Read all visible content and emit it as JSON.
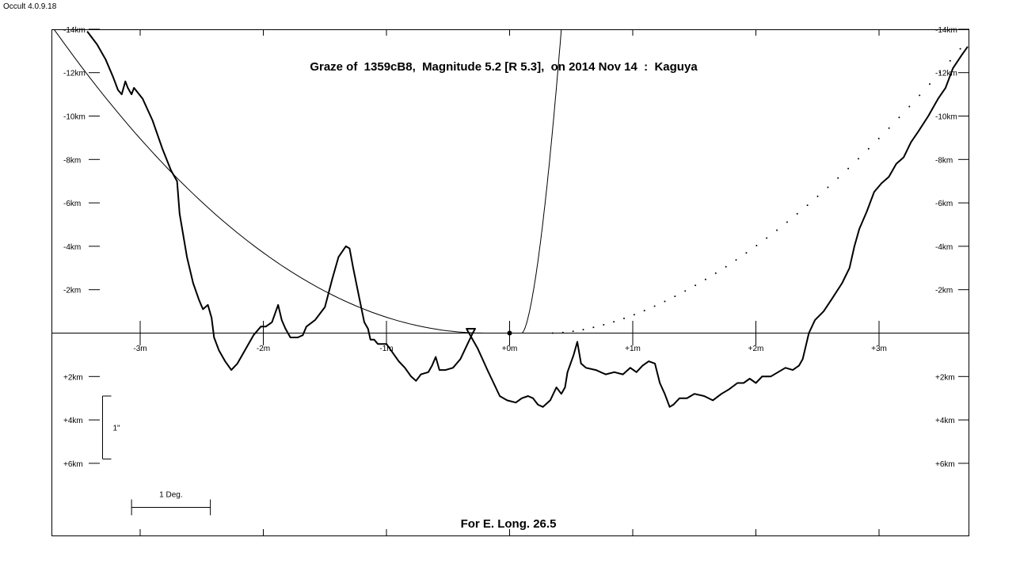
{
  "app": {
    "version_label": "Occult 4.0.9.18"
  },
  "chart_data": {
    "type": "line",
    "title": "Graze of  1359cB8,  Magnitude 5.2 [R 5.3],  on 2014 Nov 14  :  Kaguya",
    "footer": "For E. Long. 26.5",
    "x_unit": "minutes",
    "y_unit": "km",
    "xlim": [
      -3.7,
      3.78
    ],
    "ylim": [
      -14,
      9.3
    ],
    "x_ticks": [
      {
        "value": -3,
        "label": "-3m"
      },
      {
        "value": -2,
        "label": "-2m"
      },
      {
        "value": -1,
        "label": "-1m"
      },
      {
        "value": 0,
        "label": "+0m"
      },
      {
        "value": 1,
        "label": "+1m"
      },
      {
        "value": 2,
        "label": "+2m"
      },
      {
        "value": 3,
        "label": "+3m"
      }
    ],
    "y_ticks": [
      {
        "value": -14,
        "label": "-14km"
      },
      {
        "value": -12,
        "label": "-12km"
      },
      {
        "value": -10,
        "label": "-10km"
      },
      {
        "value": -8,
        "label": "-8km"
      },
      {
        "value": -6,
        "label": "-6km"
      },
      {
        "value": -4,
        "label": "-4km"
      },
      {
        "value": -2,
        "label": "-2km"
      },
      {
        "value": 2,
        "label": "+2km"
      },
      {
        "value": 4,
        "label": "+4km"
      },
      {
        "value": 6,
        "label": "+6km"
      }
    ],
    "scale_bars": {
      "arcsec_label": "1\"",
      "arcsec_km": [
        2.9,
        5.8
      ],
      "degree_label": "1 Deg.",
      "degree_minutes": [
        -3.07,
        -2.43
      ]
    },
    "limb_profile": [
      [
        -3.43,
        -13.9
      ],
      [
        -3.35,
        -13.3
      ],
      [
        -3.28,
        -12.6
      ],
      [
        -3.22,
        -11.8
      ],
      [
        -3.18,
        -11.2
      ],
      [
        -3.15,
        -11.0
      ],
      [
        -3.12,
        -11.6
      ],
      [
        -3.1,
        -11.3
      ],
      [
        -3.07,
        -11.0
      ],
      [
        -3.05,
        -11.3
      ],
      [
        -2.98,
        -10.8
      ],
      [
        -2.9,
        -9.8
      ],
      [
        -2.82,
        -8.5
      ],
      [
        -2.75,
        -7.5
      ],
      [
        -2.7,
        -7.0
      ],
      [
        -2.68,
        -5.5
      ],
      [
        -2.62,
        -3.5
      ],
      [
        -2.57,
        -2.3
      ],
      [
        -2.52,
        -1.5
      ],
      [
        -2.49,
        -1.1
      ],
      [
        -2.45,
        -1.3
      ],
      [
        -2.42,
        -0.7
      ],
      [
        -2.4,
        0.2
      ],
      [
        -2.36,
        0.8
      ],
      [
        -2.31,
        1.3
      ],
      [
        -2.26,
        1.7
      ],
      [
        -2.21,
        1.4
      ],
      [
        -2.15,
        0.8
      ],
      [
        -2.08,
        0.1
      ],
      [
        -2.02,
        -0.3
      ],
      [
        -1.98,
        -0.3
      ],
      [
        -1.93,
        -0.5
      ],
      [
        -1.88,
        -1.3
      ],
      [
        -1.85,
        -0.6
      ],
      [
        -1.82,
        -0.2
      ],
      [
        -1.78,
        0.2
      ],
      [
        -1.72,
        0.2
      ],
      [
        -1.68,
        0.1
      ],
      [
        -1.65,
        -0.3
      ],
      [
        -1.58,
        -0.6
      ],
      [
        -1.5,
        -1.2
      ],
      [
        -1.44,
        -2.5
      ],
      [
        -1.39,
        -3.5
      ],
      [
        -1.33,
        -4.0
      ],
      [
        -1.3,
        -3.9
      ],
      [
        -1.27,
        -3.0
      ],
      [
        -1.22,
        -1.6
      ],
      [
        -1.18,
        -0.5
      ],
      [
        -1.15,
        -0.2
      ],
      [
        -1.13,
        0.3
      ],
      [
        -1.1,
        0.3
      ],
      [
        -1.07,
        0.5
      ],
      [
        -1.0,
        0.5
      ],
      [
        -0.95,
        0.9
      ],
      [
        -0.9,
        1.3
      ],
      [
        -0.85,
        1.6
      ],
      [
        -0.8,
        2.0
      ],
      [
        -0.76,
        2.2
      ],
      [
        -0.72,
        1.9
      ],
      [
        -0.66,
        1.8
      ],
      [
        -0.63,
        1.5
      ],
      [
        -0.6,
        1.1
      ],
      [
        -0.57,
        1.7
      ],
      [
        -0.52,
        1.7
      ],
      [
        -0.46,
        1.6
      ],
      [
        -0.4,
        1.2
      ],
      [
        -0.35,
        0.6
      ],
      [
        -0.3,
        0.0
      ],
      [
        -0.28,
        -0.2
      ],
      [
        -0.35,
        -0.2
      ],
      [
        -0.33,
        0.0
      ],
      [
        -0.3,
        0.3
      ],
      [
        -0.26,
        0.7
      ],
      [
        -0.22,
        1.2
      ],
      [
        -0.18,
        1.7
      ],
      [
        -0.13,
        2.3
      ],
      [
        -0.08,
        2.9
      ],
      [
        -0.02,
        3.1
      ],
      [
        0.05,
        3.2
      ],
      [
        0.1,
        3.0
      ],
      [
        0.15,
        2.9
      ],
      [
        0.19,
        3.0
      ],
      [
        0.23,
        3.3
      ],
      [
        0.27,
        3.4
      ],
      [
        0.33,
        3.1
      ],
      [
        0.38,
        2.5
      ],
      [
        0.42,
        2.8
      ],
      [
        0.45,
        2.5
      ],
      [
        0.47,
        1.8
      ],
      [
        0.52,
        1.0
      ],
      [
        0.55,
        0.4
      ],
      [
        0.58,
        1.4
      ],
      [
        0.62,
        1.6
      ],
      [
        0.7,
        1.7
      ],
      [
        0.78,
        1.9
      ],
      [
        0.85,
        1.8
      ],
      [
        0.92,
        1.9
      ],
      [
        0.98,
        1.6
      ],
      [
        1.03,
        1.8
      ],
      [
        1.08,
        1.5
      ],
      [
        1.13,
        1.3
      ],
      [
        1.18,
        1.4
      ],
      [
        1.22,
        2.3
      ],
      [
        1.26,
        2.8
      ],
      [
        1.3,
        3.4
      ],
      [
        1.33,
        3.3
      ],
      [
        1.38,
        3.0
      ],
      [
        1.44,
        3.0
      ],
      [
        1.5,
        2.8
      ],
      [
        1.58,
        2.9
      ],
      [
        1.65,
        3.1
      ],
      [
        1.72,
        2.8
      ],
      [
        1.78,
        2.6
      ],
      [
        1.85,
        2.3
      ],
      [
        1.9,
        2.3
      ],
      [
        1.95,
        2.1
      ],
      [
        2.0,
        2.3
      ],
      [
        2.05,
        2.0
      ],
      [
        2.12,
        2.0
      ],
      [
        2.18,
        1.8
      ],
      [
        2.24,
        1.6
      ],
      [
        2.3,
        1.7
      ],
      [
        2.35,
        1.5
      ],
      [
        2.38,
        1.2
      ],
      [
        2.43,
        0.0
      ],
      [
        2.48,
        -0.6
      ],
      [
        2.55,
        -1.0
      ],
      [
        2.62,
        -1.6
      ],
      [
        2.7,
        -2.3
      ],
      [
        2.76,
        -3.0
      ],
      [
        2.8,
        -4.0
      ],
      [
        2.84,
        -4.8
      ],
      [
        2.9,
        -5.6
      ],
      [
        2.96,
        -6.5
      ],
      [
        3.02,
        -6.9
      ],
      [
        3.08,
        -7.2
      ],
      [
        3.14,
        -7.8
      ],
      [
        3.2,
        -8.1
      ],
      [
        3.26,
        -8.8
      ],
      [
        3.32,
        -9.3
      ],
      [
        3.4,
        -10.0
      ],
      [
        3.48,
        -10.8
      ],
      [
        3.54,
        -11.3
      ],
      [
        3.6,
        -12.2
      ],
      [
        3.67,
        -12.8
      ],
      [
        3.72,
        -13.2
      ]
    ],
    "northern_limit_curve": {
      "vertex_minute": -0.2,
      "left_end_x": -3.7,
      "left_end_y": -14.0
    },
    "path_curve_steep": {
      "start_minute": 0.1,
      "end_minute": 0.42,
      "end_km": -14.0
    },
    "dotted_curve": {
      "start_minute": 0.35,
      "end_minute": 3.66,
      "end_km": -13.1
    },
    "graze_point": {
      "x": 0.0,
      "y": 0.0
    }
  }
}
